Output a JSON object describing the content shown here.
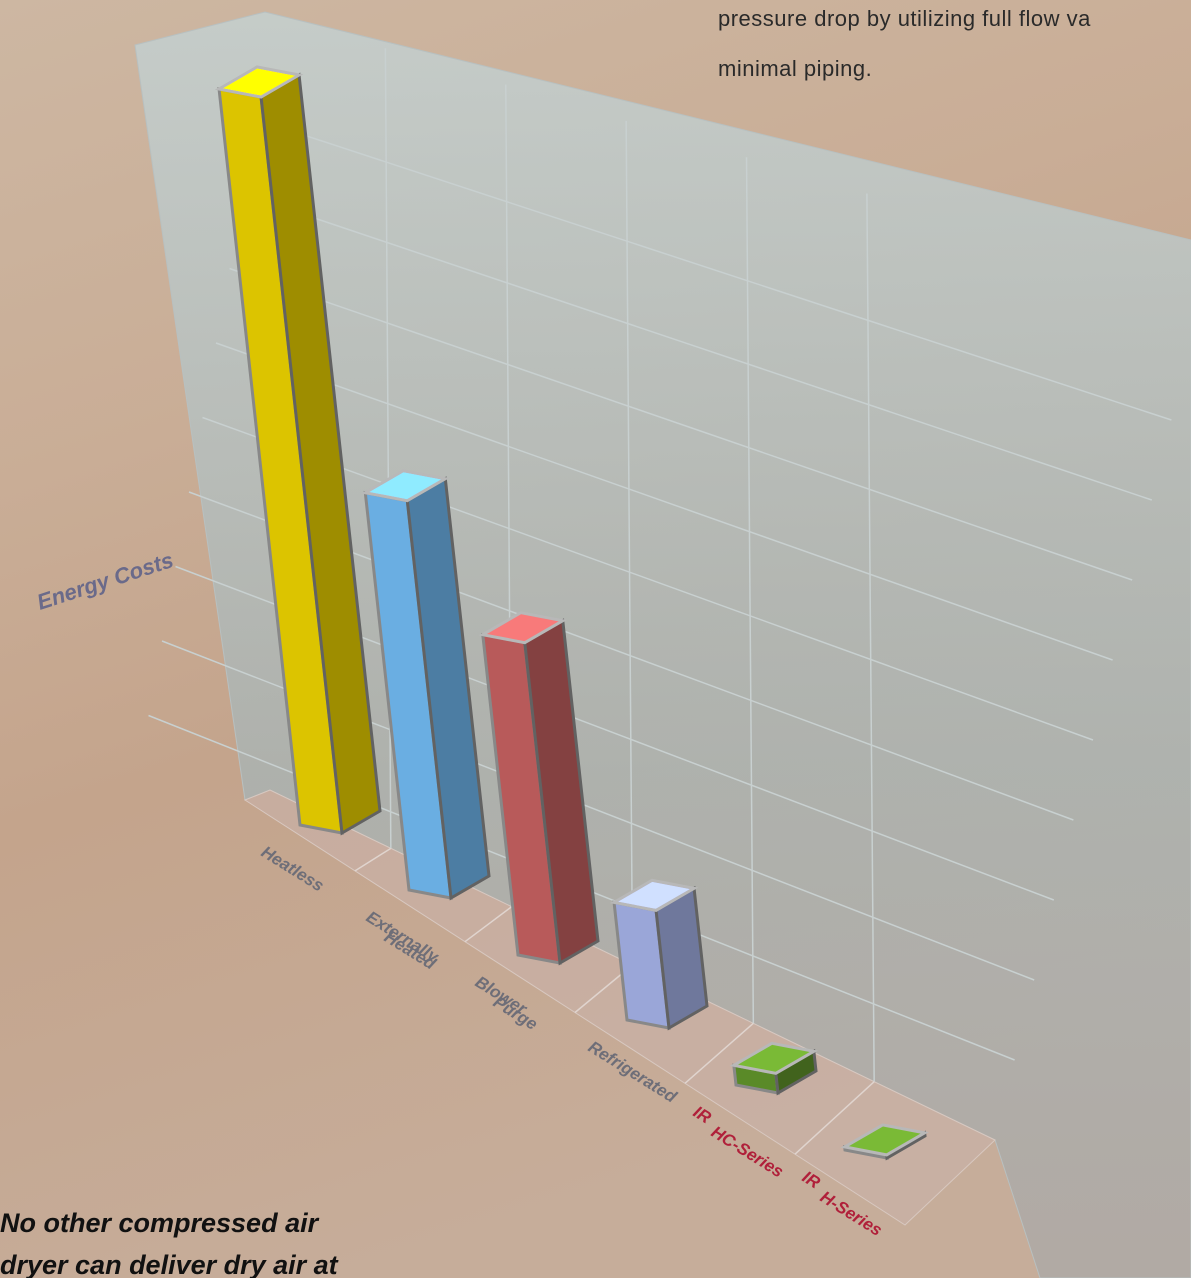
{
  "chart_data": {
    "type": "bar3d",
    "y_label": "Energy Costs",
    "categories": [
      [
        "Heatless"
      ],
      [
        "Externally",
        "Heated"
      ],
      [
        "Blower",
        "Purge"
      ],
      [
        "Refrigerated"
      ],
      [
        "IR",
        "HC-Series"
      ],
      [
        "IR",
        "H-Series"
      ]
    ],
    "values": [
      9.2,
      5.2,
      4.4,
      1.7,
      0.3,
      0.05
    ],
    "colors": [
      "#dcc400",
      "#6aaee2",
      "#b85a5a",
      "#9aa6d8",
      "#5a8a28",
      "#5a8a28"
    ],
    "label_colors": [
      "#6e6e78",
      "#6e6e78",
      "#6e6e78",
      "#6e6e78",
      "#b0203a",
      "#b0203a"
    ],
    "ylim": [
      0,
      10
    ],
    "annotations": {
      "top_right": [
        "pressure drop by utilizing full flow va",
        "minimal piping."
      ],
      "bottom_left": [
        "No other compressed air",
        "dryer can deliver dry air at"
      ]
    }
  }
}
